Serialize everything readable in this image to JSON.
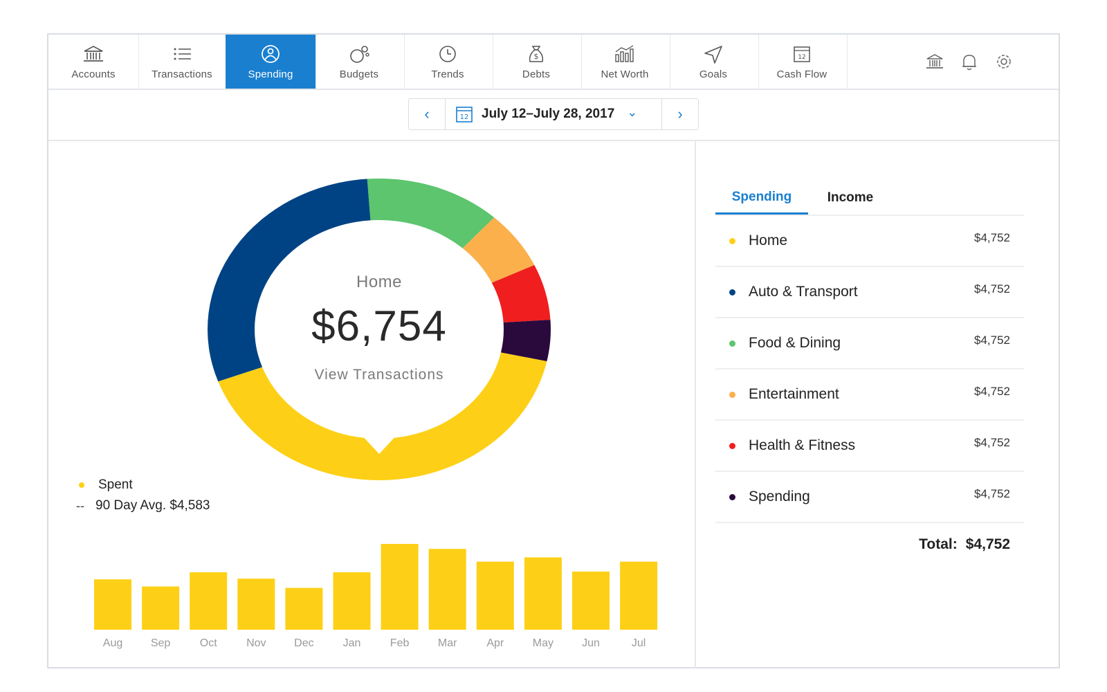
{
  "nav": {
    "items": [
      {
        "label": "Accounts",
        "icon": "bank-icon"
      },
      {
        "label": "Transactions",
        "icon": "list-icon"
      },
      {
        "label": "Spending",
        "icon": "spending-icon",
        "active": true
      },
      {
        "label": "Budgets",
        "icon": "budgets-icon"
      },
      {
        "label": "Trends",
        "icon": "clock-icon"
      },
      {
        "label": "Debts",
        "icon": "money-bag-icon"
      },
      {
        "label": "Net Worth",
        "icon": "bar-chart-icon"
      },
      {
        "label": "Goals",
        "icon": "navigation-arrow-icon"
      },
      {
        "label": "Cash Flow",
        "icon": "calendar-icon"
      }
    ],
    "right_icons": [
      "bank-icon",
      "bell-icon",
      "gear-icon"
    ]
  },
  "date_picker": {
    "range": "July 12–July 28, 2017",
    "calendar_day": "12",
    "prev": "‹",
    "next": "›",
    "dropdown": "⌄"
  },
  "donut": {
    "center_label": "Home",
    "center_amount": "$6,754",
    "link": "View Transactions",
    "segments": [
      {
        "category": "Food & Dining",
        "fraction": 0.128,
        "color": "#5cc56e"
      },
      {
        "category": "Entertainment",
        "fraction": 0.063,
        "color": "#fbb04c"
      },
      {
        "category": "Health & Fitness",
        "fraction": 0.06,
        "color": "#f01e1e"
      },
      {
        "category": "Spending",
        "fraction": 0.044,
        "color": "#2a0a3d"
      },
      {
        "category": "Home",
        "fraction": 0.41,
        "color": "#fdd017"
      },
      {
        "category": "Auto & Transport",
        "fraction": 0.295,
        "color": "#004384"
      }
    ]
  },
  "legend": {
    "spent": "Spent",
    "avg": "90 Day Avg. $4,583",
    "dash": "--"
  },
  "chart_data": {
    "type": "bar",
    "categories": [
      "Aug",
      "Sep",
      "Oct",
      "Nov",
      "Dec",
      "Jan",
      "Feb",
      "Mar",
      "Apr",
      "May",
      "Jun",
      "Jul"
    ],
    "values": [
      71,
      61,
      81,
      72,
      59,
      81,
      121,
      114,
      96,
      102,
      82,
      96
    ],
    "color": "#fdd017"
  },
  "tabs": {
    "spending": "Spending",
    "income": "Income"
  },
  "categories": [
    {
      "name": "Home",
      "amount": "$4,752",
      "color": "#fdd017"
    },
    {
      "name": "Auto & Transport",
      "amount": "$4,752",
      "color": "#004384"
    },
    {
      "name": "Food & Dining",
      "amount": "$4,752",
      "color": "#5cc56e"
    },
    {
      "name": "Entertainment",
      "amount": "$4,752",
      "color": "#fbb04c"
    },
    {
      "name": "Health & Fitness",
      "amount": "$4,752",
      "color": "#f01e1e"
    },
    {
      "name": "Spending",
      "amount": "$4,752",
      "color": "#2a0a3d"
    }
  ],
  "total": {
    "label": "Total:",
    "value": "$4,752"
  }
}
